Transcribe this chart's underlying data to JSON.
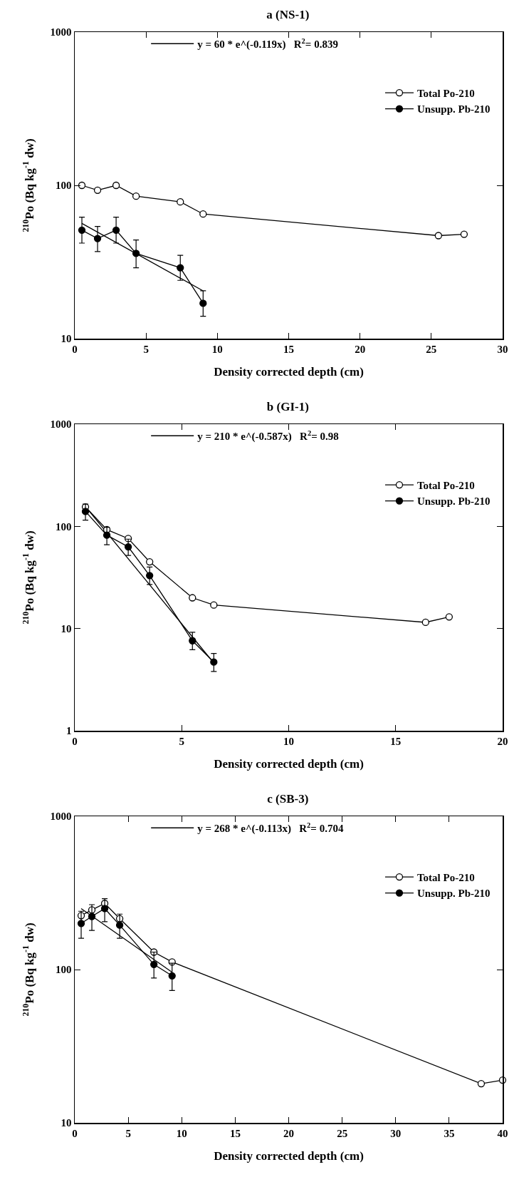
{
  "chart_data": [
    {
      "type": "line",
      "title": "a (NS-1)",
      "xlabel": "Density corrected depth (cm)",
      "ylabel": "$^{210}$Po (Bq kg$^{-1}$ dw)",
      "log": "y",
      "xlim": [
        0,
        30
      ],
      "xticks": [
        0,
        5,
        10,
        15,
        20,
        25,
        30
      ],
      "ylim": [
        10,
        1000
      ],
      "yticks": [
        10,
        100,
        1000
      ],
      "grid": false,
      "legend": "top right",
      "marker": "circle",
      "line_style": "solid",
      "series": [
        {
          "name": "y = 60 * e^(-0.119x)   R$^{2}$= 0.839",
          "color": "#000000",
          "marker": "none",
          "x": [
            0.5,
            9
          ],
          "values": [
            56.5,
            20.5
          ]
        },
        {
          "name": "Total Po-210",
          "color": "#000000",
          "marker": "circle-open",
          "x": [
            0.5,
            1.6,
            2.9,
            4.3,
            7.4,
            9,
            25.5,
            27.3
          ],
          "values": [
            100,
            93,
            100,
            85,
            78,
            65,
            47,
            48
          ]
        },
        {
          "name": "Unsupp. Pb-210",
          "color": "#000000",
          "x": [
            0.5,
            1.6,
            2.9,
            4.3,
            7.4,
            9
          ],
          "values": [
            51,
            45,
            51,
            36,
            29,
            17
          ],
          "errors": [
            [
              42,
              62
            ],
            [
              37,
              54
            ],
            [
              42,
              62
            ],
            [
              29,
              44
            ],
            [
              24,
              35
            ],
            [
              14,
              20.5
            ]
          ]
        }
      ]
    },
    {
      "type": "line",
      "title": "b (GI-1)",
      "xlabel": "Density corrected depth (cm)",
      "ylabel": "$^{210}$Po (Bq kg$^{-1}$ dw)",
      "log": "y",
      "xlim": [
        0,
        20
      ],
      "xticks": [
        0,
        5,
        10,
        15,
        20
      ],
      "ylim": [
        1,
        1000
      ],
      "yticks": [
        1,
        10,
        100,
        1000
      ],
      "grid": false,
      "legend": "top right",
      "marker": "circle",
      "line_style": "solid",
      "series": [
        {
          "name": "y = 210 * e^(-0.587x)   R$^{2}$= 0.98",
          "color": "#000000",
          "marker": "none",
          "x": [
            0.5,
            6.5
          ],
          "values": [
            156,
            4.6
          ]
        },
        {
          "name": "Total Po-210",
          "color": "#000000",
          "marker": "circle-open",
          "x": [
            0.5,
            1.5,
            2.5,
            3.5,
            5.5,
            6.5,
            16.4,
            17.5
          ],
          "values": [
            155,
            93,
            76,
            45,
            20,
            17,
            11.5,
            13
          ]
        },
        {
          "name": "Unsupp. Pb-210",
          "color": "#000000",
          "x": [
            0.5,
            1.5,
            2.5,
            3.5,
            5.5,
            6.5
          ],
          "values": [
            140,
            82,
            63,
            33,
            7.6,
            4.7
          ],
          "errors": [
            [
              115,
              165
            ],
            [
              66,
              98
            ],
            [
              52,
              75
            ],
            [
              27,
              40
            ],
            [
              6.2,
              9.2
            ],
            [
              3.8,
              5.7
            ]
          ]
        }
      ]
    },
    {
      "type": "line",
      "title": "c (SB-3)",
      "xlabel": "Density corrected depth (cm)",
      "ylabel": "$^{210}$Po (Bq kg$^{-1}$ dw)",
      "log": "y",
      "xlim": [
        0,
        40
      ],
      "xticks": [
        0,
        5,
        10,
        15,
        20,
        25,
        30,
        35,
        40
      ],
      "ylim": [
        10,
        1000
      ],
      "yticks": [
        10,
        100,
        1000
      ],
      "grid": false,
      "legend": "top right",
      "marker": "circle",
      "line_style": "solid",
      "series": [
        {
          "name": "y = 268 * e^(-0.113x)   R$^{2}$= 0.704",
          "color": "#000000",
          "marker": "none",
          "x": [
            0.6,
            9.1
          ],
          "values": [
            250,
            96
          ]
        },
        {
          "name": "Total Po-210",
          "color": "#000000",
          "marker": "circle-open",
          "x": [
            0.6,
            1.6,
            2.8,
            4.2,
            7.4,
            9.1,
            38,
            40
          ],
          "values": [
            225,
            245,
            270,
            215,
            130,
            112,
            18,
            19
          ]
        },
        {
          "name": "Unsupp. Pb-210",
          "color": "#000000",
          "x": [
            0.6,
            1.6,
            2.8,
            4.2,
            7.4,
            9.1
          ],
          "values": [
            200,
            222,
            250,
            195,
            108,
            91
          ],
          "errors": [
            [
              160,
              240
            ],
            [
              180,
              265
            ],
            [
              205,
              290
            ],
            [
              160,
              230
            ],
            [
              88,
              130
            ],
            [
              73,
              110
            ]
          ]
        }
      ]
    }
  ]
}
